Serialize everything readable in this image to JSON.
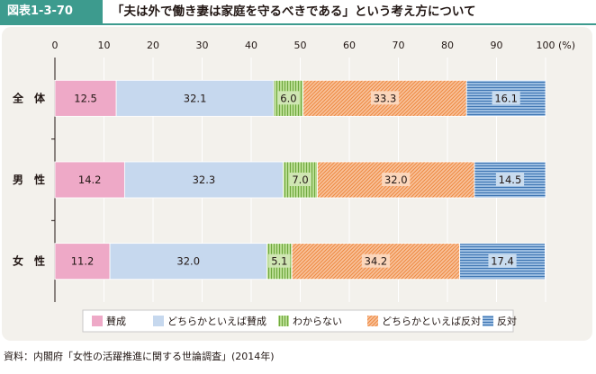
{
  "header": {
    "figure_label": "図表1-3-70",
    "title": "「夫は外で働き妻は家庭を守るべきである」という考え方について"
  },
  "chart_data": {
    "type": "bar",
    "orientation": "horizontal",
    "stacked": true,
    "unit_label": "(%)",
    "xlim": [
      0,
      100
    ],
    "x_ticks": [
      0,
      10,
      20,
      30,
      40,
      50,
      60,
      70,
      80,
      90,
      100
    ],
    "categories": [
      "全　体",
      "男　性",
      "女　性"
    ],
    "series": [
      {
        "name": "賛成",
        "color": "#eea9c7",
        "pattern": "solid",
        "values": [
          12.5,
          14.2,
          11.2
        ],
        "labels": [
          "12.5",
          "14.2",
          "11.2"
        ]
      },
      {
        "name": "どちらかといえば賛成",
        "color": "#c6d8ee",
        "pattern": "solid",
        "values": [
          32.1,
          32.3,
          32.0
        ],
        "labels": [
          "32.1",
          "32.3",
          "32.0"
        ]
      },
      {
        "name": "わからない",
        "color": "#9dc96a",
        "pattern": "vertical-lines",
        "values": [
          6.0,
          7.0,
          5.1
        ],
        "labels": [
          "6.0",
          "7.0",
          "5.1"
        ]
      },
      {
        "name": "どちらかといえば反対",
        "color": "#f4a46a",
        "pattern": "diagonal-lines",
        "values": [
          33.3,
          32.0,
          34.2
        ],
        "labels": [
          "33.3",
          "32.0",
          "34.2"
        ]
      },
      {
        "name": "反対",
        "color": "#5b8fc7",
        "pattern": "horizontal-lines",
        "values": [
          16.1,
          14.5,
          17.4
        ],
        "labels": [
          "16.1",
          "14.5",
          "17.4"
        ]
      }
    ],
    "legend_position": "bottom"
  },
  "source": "資料：内閣府「女性の活躍推進に関する世論調査」(2014年)"
}
